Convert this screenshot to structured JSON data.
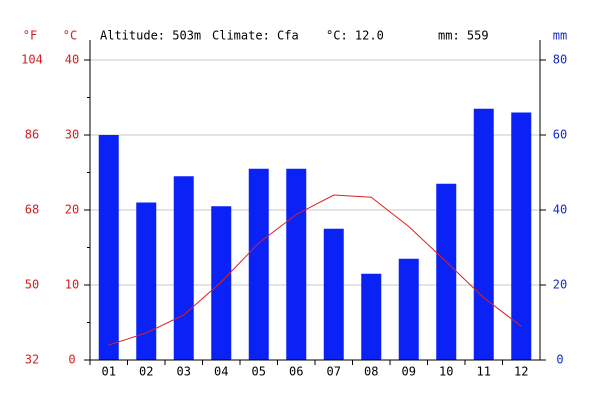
{
  "chart_data": {
    "type": "climate",
    "annotations": [
      "Altitude: 503m",
      "Climate: Cfa",
      "°C: 12.0",
      "mm: 559"
    ],
    "left_unit": "°F",
    "y_unit": "°C",
    "y2_unit": "mm",
    "categories": [
      "01",
      "02",
      "03",
      "04",
      "05",
      "06",
      "07",
      "08",
      "09",
      "10",
      "11",
      "12"
    ],
    "series": [
      {
        "type": "bar",
        "axis": "y2",
        "color": "#0a22f5",
        "values": [
          60,
          42,
          49,
          41,
          51,
          51,
          35,
          23,
          27,
          47,
          67,
          66
        ]
      },
      {
        "type": "line",
        "color": "#e02020",
        "values": [
          2.0,
          3.6,
          6.0,
          10.4,
          15.6,
          19.4,
          22.0,
          21.7,
          17.8,
          13.1,
          8.3,
          4.5
        ]
      }
    ],
    "ylim": [
      0,
      40
    ],
    "yticks": [
      0,
      10,
      20,
      30,
      40
    ],
    "minor_yticks": [
      5,
      15,
      25,
      35
    ],
    "y2lim": [
      0,
      80
    ],
    "y2ticks": [
      0,
      20,
      40,
      60,
      80
    ],
    "fahrenheit_lim": [
      32,
      104
    ],
    "fahrenheit_ticks": [
      32,
      50,
      68,
      86,
      104
    ],
    "grid": true,
    "left_color": "#d42020",
    "right_color": "#1a2ad0"
  }
}
